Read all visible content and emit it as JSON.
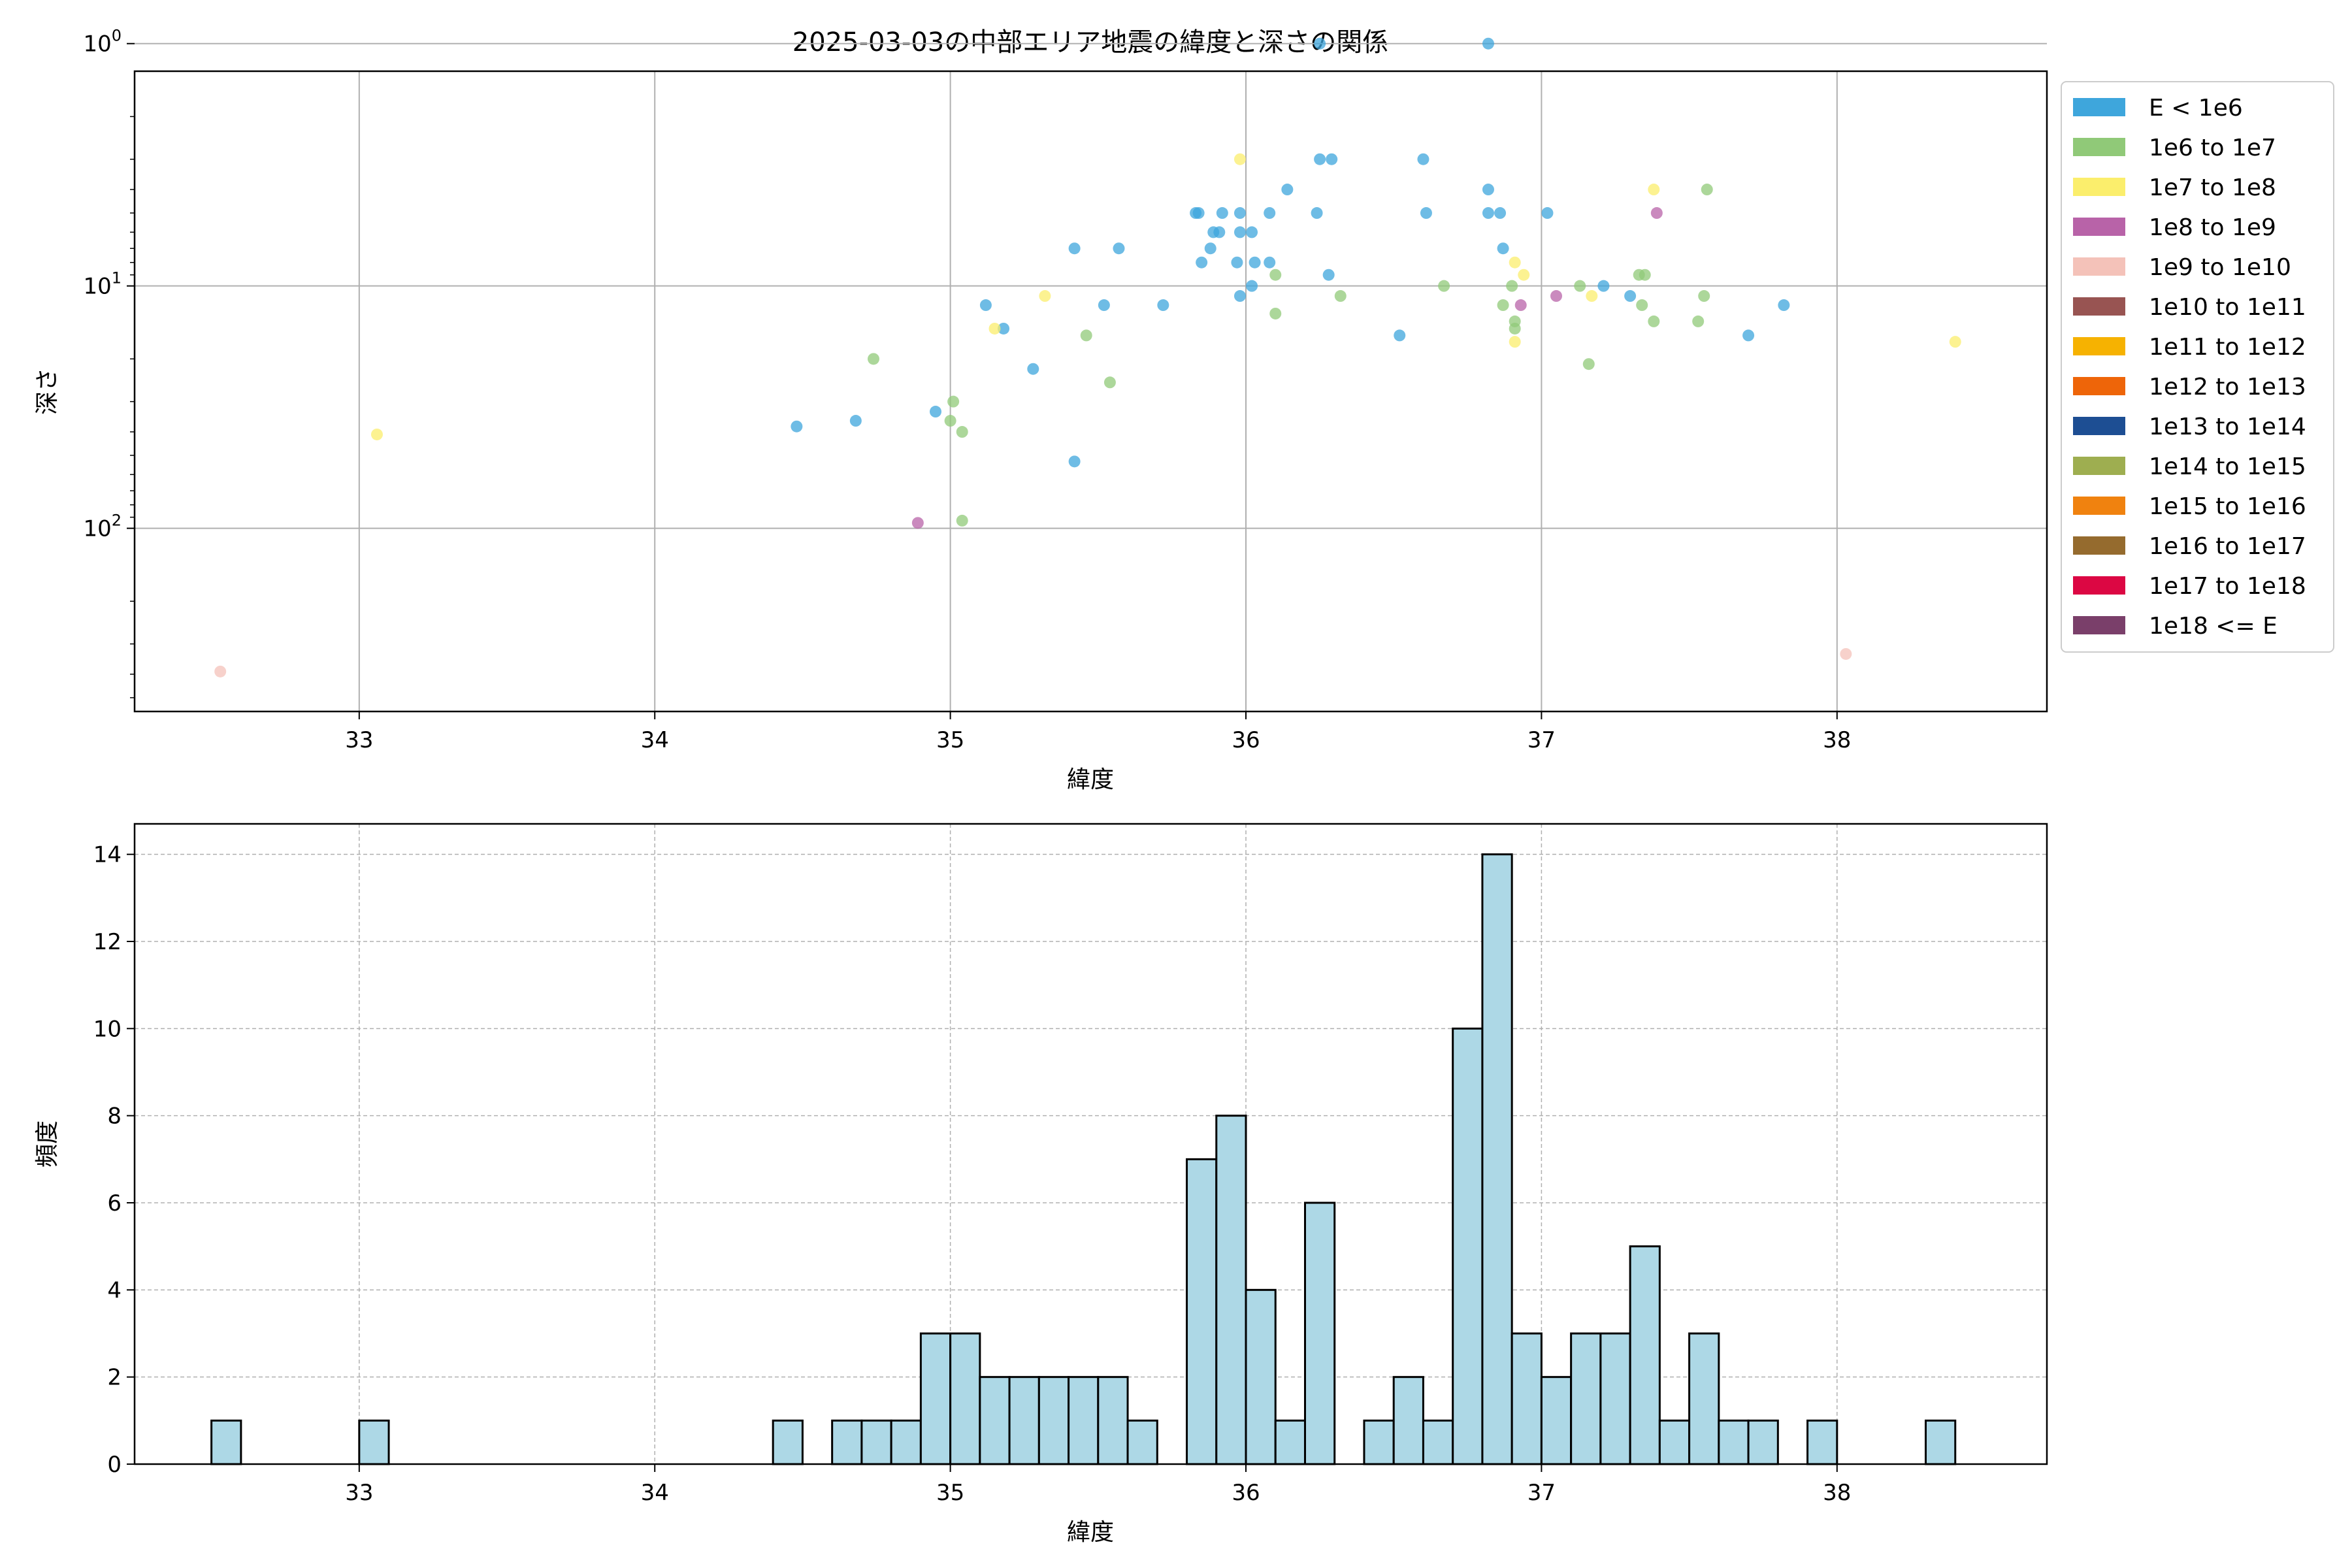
{
  "chart_data": [
    {
      "type": "scatter",
      "title": "2025-03-03の中部エリア地震の緯度と深さの関係",
      "xlabel": "緯度",
      "ylabel": "深さ",
      "xlim": [
        32.24,
        38.71
      ],
      "xticks": [
        33,
        34,
        35,
        36,
        37,
        38
      ],
      "yscale": "log",
      "yaxis_inverted": true,
      "ylim": [
        1.3,
        570
      ],
      "yticks": [
        {
          "value": 1,
          "label": "10^0"
        },
        {
          "value": 10,
          "label": "10^1"
        },
        {
          "value": 100,
          "label": "10^2"
        }
      ],
      "grid": true,
      "legend_position": "outside-right",
      "legend": [
        {
          "label": "E < 1e6",
          "color": "#3ea6dc"
        },
        {
          "label": "1e6 to 1e7",
          "color": "#90c978"
        },
        {
          "label": "1e7 to 1e8",
          "color": "#fbee6c"
        },
        {
          "label": "1e8 to 1e9",
          "color": "#b863a8"
        },
        {
          "label": "1e9 to 1e10",
          "color": "#f4c2b9"
        },
        {
          "label": "1e10 to 1e11",
          "color": "#985452"
        },
        {
          "label": "1e11 to 1e12",
          "color": "#f6b201"
        },
        {
          "label": "1e12 to 1e13",
          "color": "#ee6509"
        },
        {
          "label": "1e13 to 1e14",
          "color": "#1d4e93"
        },
        {
          "label": "1e14 to 1e15",
          "color": "#9eae50"
        },
        {
          "label": "1e15 to 1e16",
          "color": "#f0820f"
        },
        {
          "label": "1e16 to 1e17",
          "color": "#956b2e"
        },
        {
          "label": "1e17 to 1e18",
          "color": "#dc0743"
        },
        {
          "label": "1e18 <= E",
          "color": "#7a3f6a"
        }
      ],
      "series": [
        {
          "name": "E < 1e6",
          "color": "#3ea6dc",
          "points": [
            [
              36.25,
              1
            ],
            [
              36.82,
              1
            ],
            [
              36.25,
              3
            ],
            [
              36.29,
              3
            ],
            [
              36.6,
              3
            ],
            [
              36.14,
              4
            ],
            [
              36.82,
              4
            ],
            [
              35.83,
              5
            ],
            [
              35.84,
              5
            ],
            [
              35.92,
              5
            ],
            [
              35.98,
              5
            ],
            [
              36.08,
              5
            ],
            [
              36.24,
              5
            ],
            [
              36.61,
              5
            ],
            [
              36.82,
              5
            ],
            [
              36.86,
              5
            ],
            [
              37.02,
              5
            ],
            [
              35.89,
              6
            ],
            [
              35.91,
              6
            ],
            [
              35.98,
              6
            ],
            [
              36.02,
              6
            ],
            [
              35.42,
              7
            ],
            [
              35.57,
              7
            ],
            [
              35.88,
              7
            ],
            [
              36.87,
              7
            ],
            [
              35.85,
              8
            ],
            [
              35.97,
              8
            ],
            [
              36.03,
              8
            ],
            [
              36.08,
              8
            ],
            [
              36.28,
              9
            ],
            [
              36.02,
              10
            ],
            [
              37.21,
              10
            ],
            [
              35.98,
              11
            ],
            [
              37.3,
              11
            ],
            [
              35.12,
              12
            ],
            [
              35.52,
              12
            ],
            [
              35.72,
              12
            ],
            [
              37.82,
              12
            ],
            [
              35.18,
              15
            ],
            [
              36.52,
              16
            ],
            [
              37.7,
              16
            ],
            [
              35.28,
              22
            ],
            [
              34.95,
              33
            ],
            [
              34.68,
              36
            ],
            [
              34.48,
              38
            ],
            [
              35.42,
              53
            ]
          ]
        },
        {
          "name": "1e6 to 1e7",
          "color": "#90c978",
          "points": [
            [
              37.56,
              4
            ],
            [
              36.1,
              9
            ],
            [
              37.33,
              9
            ],
            [
              37.35,
              9
            ],
            [
              36.67,
              10
            ],
            [
              36.9,
              10
            ],
            [
              37.13,
              10
            ],
            [
              36.32,
              11
            ],
            [
              37.55,
              11
            ],
            [
              36.87,
              12
            ],
            [
              37.34,
              12
            ],
            [
              36.1,
              13
            ],
            [
              36.91,
              14
            ],
            [
              37.38,
              14
            ],
            [
              37.53,
              14
            ],
            [
              36.91,
              15
            ],
            [
              35.46,
              16
            ],
            [
              37.16,
              21
            ],
            [
              34.74,
              20
            ],
            [
              35.54,
              25
            ],
            [
              35.01,
              30
            ],
            [
              35.0,
              36
            ],
            [
              35.04,
              40
            ],
            [
              35.04,
              93
            ]
          ]
        },
        {
          "name": "1e7 to 1e8",
          "color": "#fbee6c",
          "points": [
            [
              35.98,
              3
            ],
            [
              37.38,
              4
            ],
            [
              36.91,
              8
            ],
            [
              36.94,
              9
            ],
            [
              35.32,
              11
            ],
            [
              37.17,
              11
            ],
            [
              35.15,
              15
            ],
            [
              36.91,
              17
            ],
            [
              38.4,
              17
            ],
            [
              33.06,
              41
            ]
          ]
        },
        {
          "name": "1e8 to 1e9",
          "color": "#b863a8",
          "points": [
            [
              37.39,
              5
            ],
            [
              37.05,
              11
            ],
            [
              36.93,
              12
            ],
            [
              34.89,
              95
            ]
          ]
        },
        {
          "name": "1e9 to 1e10",
          "color": "#f4c2b9",
          "points": [
            [
              38.03,
              330
            ],
            [
              32.53,
              390
            ]
          ]
        }
      ]
    },
    {
      "type": "bar",
      "title": "",
      "xlabel": "緯度",
      "ylabel": "頻度",
      "xlim": [
        32.24,
        38.71
      ],
      "xticks": [
        33,
        34,
        35,
        36,
        37,
        38
      ],
      "ylim": [
        0,
        14.7
      ],
      "yticks": [
        0,
        2,
        4,
        6,
        8,
        10,
        12,
        14
      ],
      "grid": "dashed",
      "bar_color": "#add8e6",
      "bin_width": 0.1,
      "bins": [
        [
          32.5,
          1
        ],
        [
          33.0,
          1
        ],
        [
          34.4,
          1
        ],
        [
          34.6,
          1
        ],
        [
          34.7,
          1
        ],
        [
          34.8,
          1
        ],
        [
          34.9,
          3
        ],
        [
          35.0,
          3
        ],
        [
          35.1,
          2
        ],
        [
          35.2,
          2
        ],
        [
          35.3,
          2
        ],
        [
          35.4,
          2
        ],
        [
          35.5,
          2
        ],
        [
          35.6,
          1
        ],
        [
          35.8,
          7
        ],
        [
          35.9,
          8
        ],
        [
          36.0,
          4
        ],
        [
          36.1,
          1
        ],
        [
          36.2,
          6
        ],
        [
          36.4,
          1
        ],
        [
          36.5,
          2
        ],
        [
          36.6,
          1
        ],
        [
          36.7,
          10
        ],
        [
          36.8,
          14
        ],
        [
          36.9,
          3
        ],
        [
          37.0,
          2
        ],
        [
          37.1,
          3
        ],
        [
          37.2,
          3
        ],
        [
          37.3,
          5
        ],
        [
          37.4,
          1
        ],
        [
          37.5,
          3
        ],
        [
          37.6,
          1
        ],
        [
          37.7,
          1
        ],
        [
          37.9,
          1
        ],
        [
          38.3,
          1
        ]
      ]
    }
  ]
}
